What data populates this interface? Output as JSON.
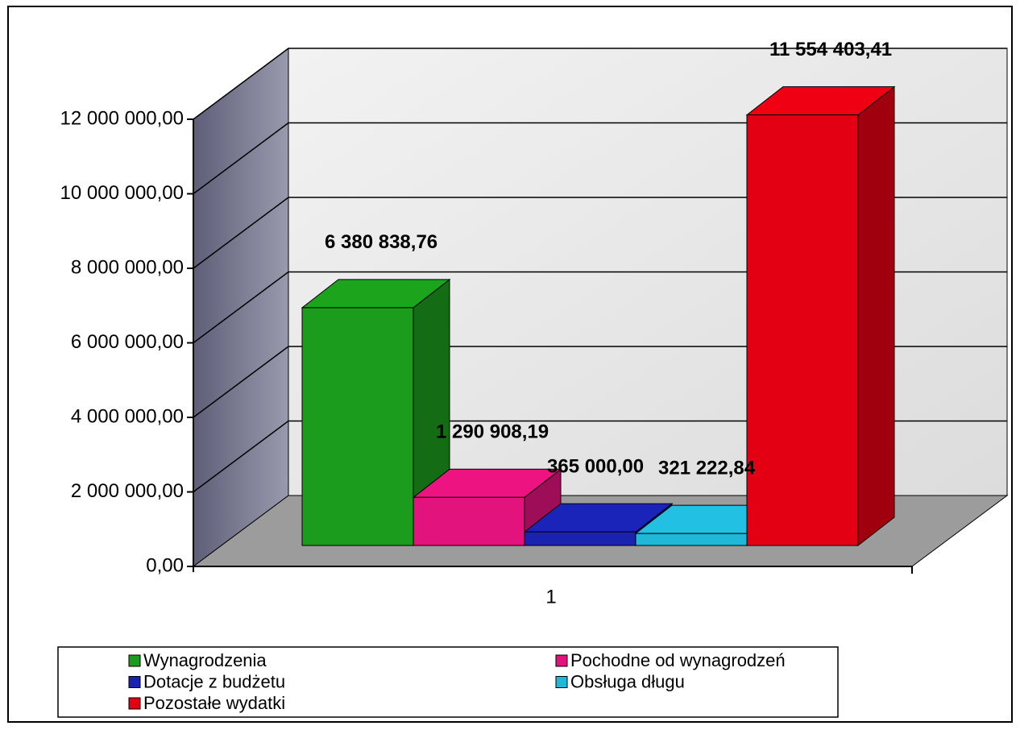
{
  "chart_data": {
    "type": "bar3d",
    "categories": [
      "1"
    ],
    "series": [
      {
        "name": "Wynagrodzenia",
        "color": "#1c9c1c",
        "values": [
          6380838.76
        ],
        "value_labels": [
          "6 380 838,76"
        ]
      },
      {
        "name": "Pochodne od wynagrodzeń",
        "color": "#e2137c",
        "values": [
          1290908.19
        ],
        "value_labels": [
          "1 290 908,19"
        ]
      },
      {
        "name": "Dotacje z budżetu",
        "color": "#1a22b0",
        "values": [
          365000.0
        ],
        "value_labels": [
          "365 000,00"
        ]
      },
      {
        "name": "Obsługa długu",
        "color": "#20b8d8",
        "values": [
          321222.84
        ],
        "value_labels": [
          "321 222,84"
        ]
      },
      {
        "name": "Pozostałe wydatki",
        "color": "#e40012",
        "values": [
          11554403.41
        ],
        "value_labels": [
          "11 554 403,41"
        ]
      }
    ],
    "ylim": [
      0,
      12000000
    ],
    "yticks": [
      {
        "value": 0,
        "label": "0,00"
      },
      {
        "value": 2000000,
        "label": "2 000 000,00"
      },
      {
        "value": 4000000,
        "label": "4 000 000,00"
      },
      {
        "value": 6000000,
        "label": "6 000 000,00"
      },
      {
        "value": 8000000,
        "label": "8 000 000,00"
      },
      {
        "value": 10000000,
        "label": "10 000 000,00"
      },
      {
        "value": 12000000,
        "label": "12 000 000,00"
      }
    ],
    "grid": true,
    "legend": "bottom"
  }
}
